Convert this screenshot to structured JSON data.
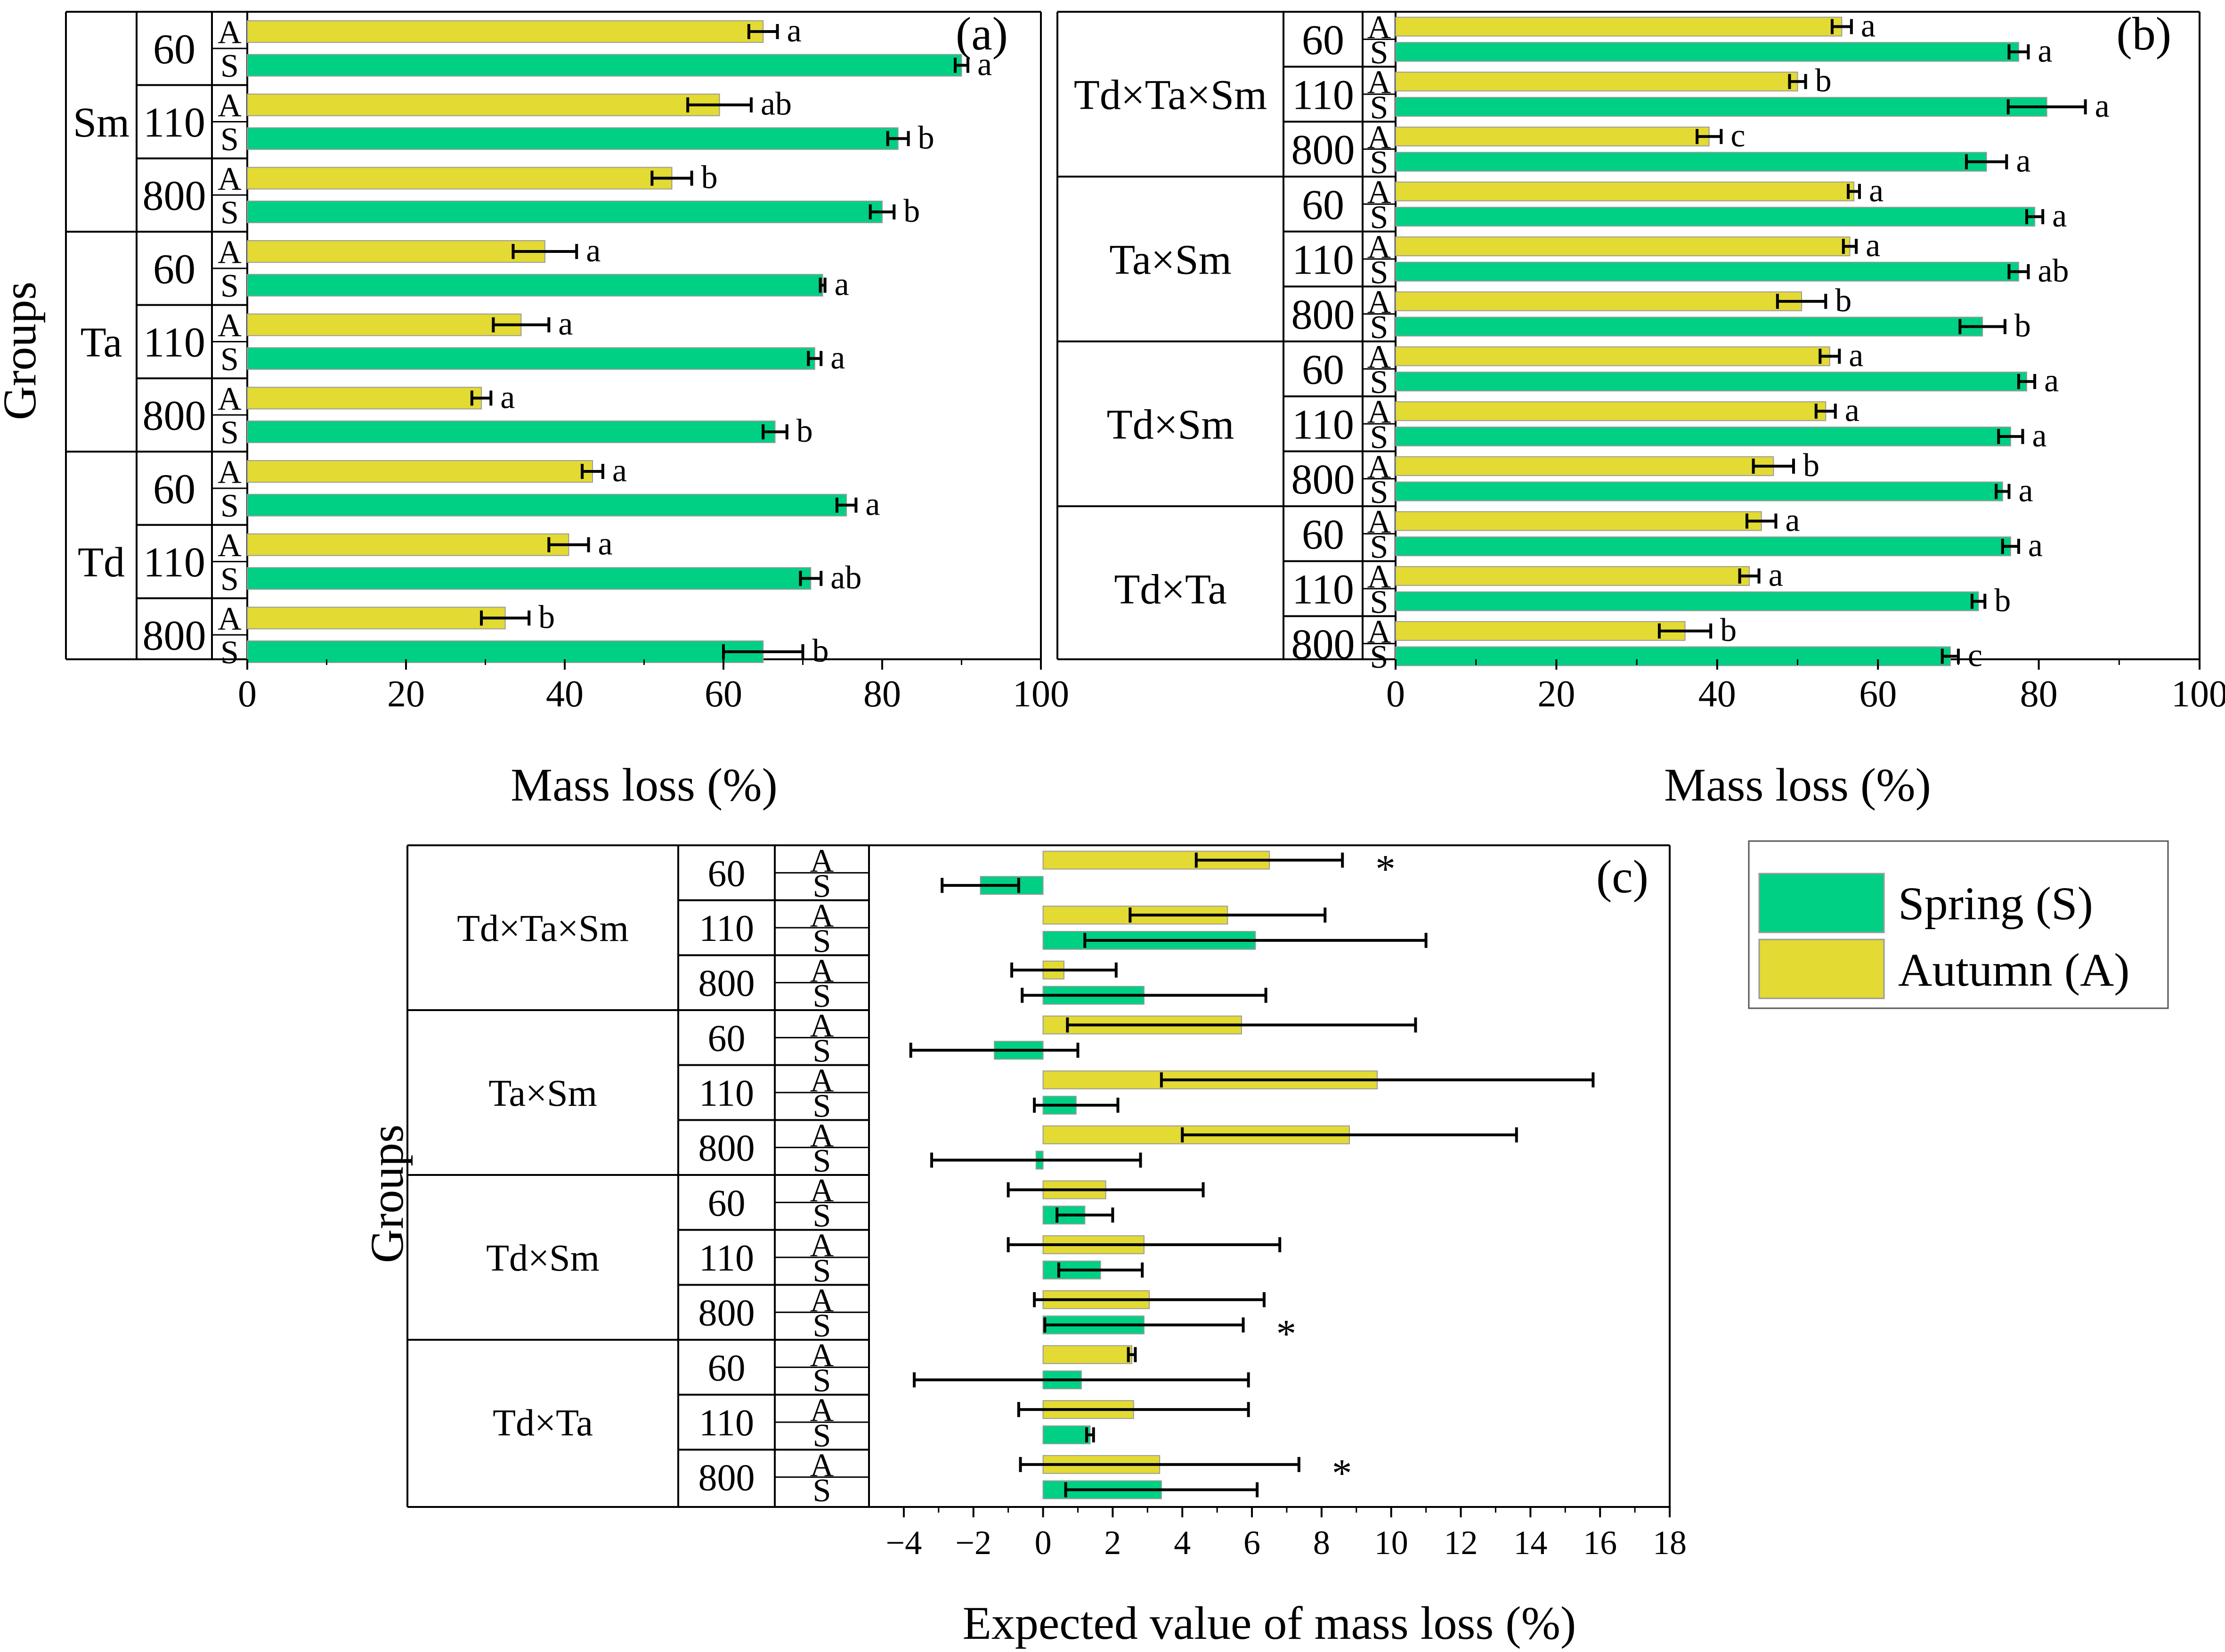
{
  "colors": {
    "spring": "#00d084",
    "autumn": "#e3da33",
    "axis": "#000000",
    "bar_edge": "#9a9a9a"
  },
  "legend": {
    "spring_label": "Spring (S)",
    "autumn_label": "Autumn (A)"
  },
  "chart_data": [
    {
      "type": "bar",
      "panel_label": "(a)",
      "title": "",
      "xlabel": "Mass loss (%)",
      "ylabel": "Groups",
      "xlim": [
        0,
        100
      ],
      "xticks": [
        0,
        20,
        40,
        60,
        80,
        100
      ],
      "groups": [
        {
          "name": "Sm",
          "levels": [
            {
              "level": "60",
              "A": {
                "value": 65.0,
                "err": 1.8,
                "sig": "a"
              },
              "S": {
                "value": 90.0,
                "err": 0.8,
                "sig": "a"
              }
            },
            {
              "level": "110",
              "A": {
                "value": 59.5,
                "err": 4.0,
                "sig": "ab"
              },
              "S": {
                "value": 82.0,
                "err": 1.3,
                "sig": "b"
              }
            },
            {
              "level": "800",
              "A": {
                "value": 53.5,
                "err": 2.5,
                "sig": "b"
              },
              "S": {
                "value": 80.0,
                "err": 1.5,
                "sig": "b"
              }
            }
          ]
        },
        {
          "name": "Ta",
          "levels": [
            {
              "level": "60",
              "A": {
                "value": 37.5,
                "err": 4.0,
                "sig": "a"
              },
              "S": {
                "value": 72.5,
                "err": 0.3,
                "sig": "a"
              }
            },
            {
              "level": "110",
              "A": {
                "value": 34.5,
                "err": 3.5,
                "sig": "a"
              },
              "S": {
                "value": 71.5,
                "err": 0.8,
                "sig": "a"
              }
            },
            {
              "level": "800",
              "A": {
                "value": 29.5,
                "err": 1.2,
                "sig": "a"
              },
              "S": {
                "value": 66.5,
                "err": 1.5,
                "sig": "b"
              }
            }
          ]
        },
        {
          "name": "Td",
          "levels": [
            {
              "level": "60",
              "A": {
                "value": 43.5,
                "err": 1.3,
                "sig": "a"
              },
              "S": {
                "value": 75.5,
                "err": 1.2,
                "sig": "a"
              }
            },
            {
              "level": "110",
              "A": {
                "value": 40.5,
                "err": 2.5,
                "sig": "a"
              },
              "S": {
                "value": 71.0,
                "err": 1.3,
                "sig": "ab"
              }
            },
            {
              "level": "800",
              "A": {
                "value": 32.5,
                "err": 3.0,
                "sig": "b"
              },
              "S": {
                "value": 65.0,
                "err": 5.0,
                "sig": "b"
              }
            }
          ]
        }
      ]
    },
    {
      "type": "bar",
      "panel_label": "(b)",
      "title": "",
      "xlabel": "Mass loss (%)",
      "ylabel": "",
      "xlim": [
        0,
        100
      ],
      "xticks": [
        0,
        20,
        40,
        60,
        80,
        100
      ],
      "groups": [
        {
          "name": "Td×Ta×Sm",
          "levels": [
            {
              "level": "60",
              "A": {
                "value": 55.5,
                "err": 1.2,
                "sig": "a"
              },
              "S": {
                "value": 77.5,
                "err": 1.2,
                "sig": "a"
              }
            },
            {
              "level": "110",
              "A": {
                "value": 50.0,
                "err": 1.0,
                "sig": "b"
              },
              "S": {
                "value": 81.0,
                "err": 4.8,
                "sig": "a"
              }
            },
            {
              "level": "800",
              "A": {
                "value": 39.0,
                "err": 1.5,
                "sig": "c"
              },
              "S": {
                "value": 73.5,
                "err": 2.5,
                "sig": "a"
              }
            }
          ]
        },
        {
          "name": "Ta×Sm",
          "levels": [
            {
              "level": "60",
              "A": {
                "value": 57.0,
                "err": 0.7,
                "sig": "a"
              },
              "S": {
                "value": 79.5,
                "err": 1.0,
                "sig": "a"
              }
            },
            {
              "level": "110",
              "A": {
                "value": 56.5,
                "err": 0.8,
                "sig": "a"
              },
              "S": {
                "value": 77.5,
                "err": 1.2,
                "sig": "ab"
              }
            },
            {
              "level": "800",
              "A": {
                "value": 50.5,
                "err": 3.0,
                "sig": "b"
              },
              "S": {
                "value": 73.0,
                "err": 2.8,
                "sig": "b"
              }
            }
          ]
        },
        {
          "name": "Td×Sm",
          "levels": [
            {
              "level": "60",
              "A": {
                "value": 54.0,
                "err": 1.2,
                "sig": "a"
              },
              "S": {
                "value": 78.5,
                "err": 1.0,
                "sig": "a"
              }
            },
            {
              "level": "110",
              "A": {
                "value": 53.5,
                "err": 1.2,
                "sig": "a"
              },
              "S": {
                "value": 76.5,
                "err": 1.5,
                "sig": "a"
              }
            },
            {
              "level": "800",
              "A": {
                "value": 47.0,
                "err": 2.5,
                "sig": "b"
              },
              "S": {
                "value": 75.5,
                "err": 0.8,
                "sig": "a"
              }
            }
          ]
        },
        {
          "name": "Td×Ta",
          "levels": [
            {
              "level": "60",
              "A": {
                "value": 45.5,
                "err": 1.8,
                "sig": "a"
              },
              "S": {
                "value": 76.5,
                "err": 1.0,
                "sig": "a"
              }
            },
            {
              "level": "110",
              "A": {
                "value": 44.0,
                "err": 1.2,
                "sig": "a"
              },
              "S": {
                "value": 72.5,
                "err": 0.8,
                "sig": "b"
              }
            },
            {
              "level": "800",
              "A": {
                "value": 36.0,
                "err": 3.2,
                "sig": "b"
              },
              "S": {
                "value": 69.0,
                "err": 1.0,
                "sig": "c"
              }
            }
          ]
        }
      ]
    },
    {
      "type": "bar",
      "panel_label": "(c)",
      "title": "",
      "xlabel": "Expected value of mass loss (%)",
      "ylabel": "Groups",
      "xlim": [
        -5,
        18
      ],
      "xticks": [
        -4,
        -2,
        0,
        2,
        4,
        6,
        8,
        10,
        12,
        14,
        16,
        18
      ],
      "xtick_labels": [
        "−4",
        "−2",
        "0",
        "2",
        "4",
        "6",
        "8",
        "10",
        "12",
        "14",
        "16",
        "18"
      ],
      "groups": [
        {
          "name": "Td×Ta×Sm",
          "levels": [
            {
              "level": "60",
              "A": {
                "value": 6.5,
                "err": 2.1,
                "sig": "*"
              },
              "S": {
                "value": -1.8,
                "err": 1.1,
                "sig": ""
              }
            },
            {
              "level": "110",
              "A": {
                "value": 5.3,
                "err": 2.8,
                "sig": ""
              },
              "S": {
                "value": 6.1,
                "err": 4.9,
                "sig": ""
              }
            },
            {
              "level": "800",
              "A": {
                "value": 0.6,
                "err": 1.5,
                "sig": ""
              },
              "S": {
                "value": 2.9,
                "err": 3.5,
                "sig": ""
              }
            }
          ]
        },
        {
          "name": "Ta×Sm",
          "levels": [
            {
              "level": "60",
              "A": {
                "value": 5.7,
                "err": 5.0,
                "sig": ""
              },
              "S": {
                "value": -1.4,
                "err": 2.4,
                "sig": ""
              }
            },
            {
              "level": "110",
              "A": {
                "value": 9.6,
                "err": 6.2,
                "sig": ""
              },
              "S": {
                "value": 0.95,
                "err": 1.2,
                "sig": ""
              }
            },
            {
              "level": "800",
              "A": {
                "value": 8.8,
                "err": 4.8,
                "sig": ""
              },
              "S": {
                "value": -0.2,
                "err": 3.0,
                "sig": ""
              }
            }
          ]
        },
        {
          "name": "Td×Sm",
          "levels": [
            {
              "level": "60",
              "A": {
                "value": 1.8,
                "err": 2.8,
                "sig": ""
              },
              "S": {
                "value": 1.2,
                "err": 0.8,
                "sig": ""
              }
            },
            {
              "level": "110",
              "A": {
                "value": 2.9,
                "err": 3.9,
                "sig": ""
              },
              "S": {
                "value": 1.65,
                "err": 1.2,
                "sig": ""
              }
            },
            {
              "level": "800",
              "A": {
                "value": 3.05,
                "err": 3.3,
                "sig": ""
              },
              "S": {
                "value": 2.9,
                "err": 2.85,
                "sig": "*"
              }
            }
          ]
        },
        {
          "name": "Td×Ta",
          "levels": [
            {
              "level": "60",
              "A": {
                "value": 2.55,
                "err": 0.1,
                "sig": ""
              },
              "S": {
                "value": 1.1,
                "err": 4.8,
                "sig": ""
              }
            },
            {
              "level": "110",
              "A": {
                "value": 2.6,
                "err": 3.3,
                "sig": ""
              },
              "S": {
                "value": 1.35,
                "err": 0.1,
                "sig": ""
              }
            },
            {
              "level": "800",
              "A": {
                "value": 3.35,
                "err": 4.0,
                "sig": "*"
              },
              "S": {
                "value": 3.4,
                "err": 2.75,
                "sig": ""
              }
            }
          ]
        }
      ]
    }
  ]
}
